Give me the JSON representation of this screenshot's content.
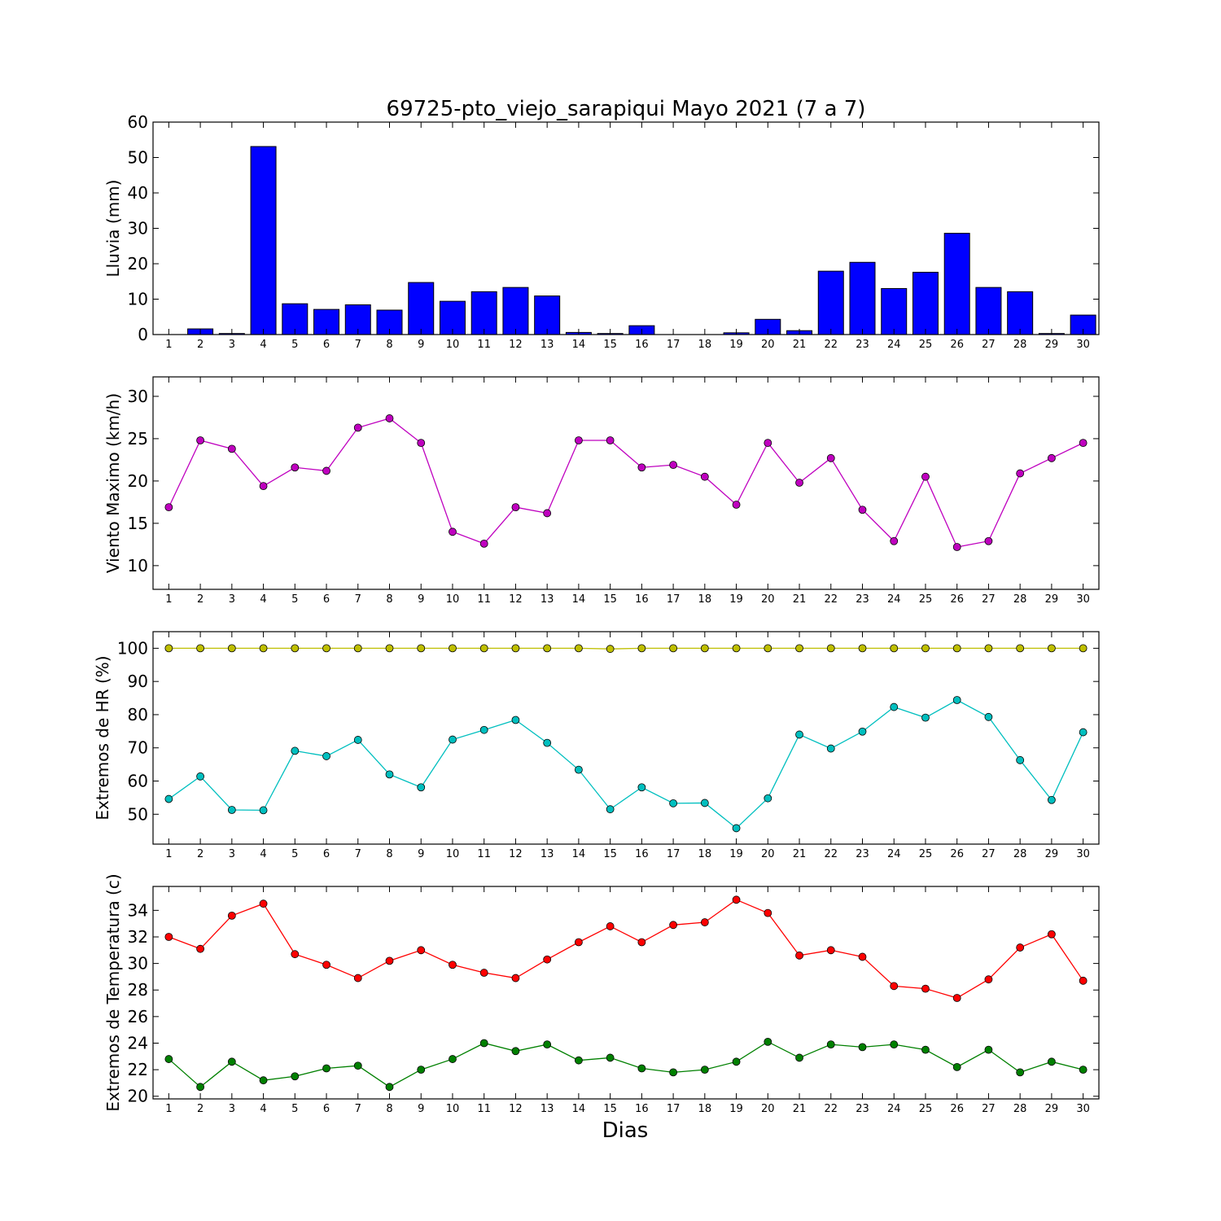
{
  "title": "69725-pto_viejo_sarapiqui Mayo 2021  (7 a 7)",
  "x_axis_label": "Dias",
  "days": [
    1,
    2,
    3,
    4,
    5,
    6,
    7,
    8,
    9,
    10,
    11,
    12,
    13,
    14,
    15,
    16,
    17,
    18,
    19,
    20,
    21,
    22,
    23,
    24,
    25,
    26,
    27,
    28,
    29,
    30
  ],
  "chart_data": [
    {
      "type": "bar",
      "ylabel": "Lluvia (mm)",
      "ylim": [
        0,
        60
      ],
      "yticks": [
        0,
        10,
        20,
        30,
        40,
        50,
        60
      ],
      "series": [
        {
          "color": "#0000ff",
          "values": [
            0,
            1.6,
            0.3,
            53.1,
            8.7,
            7.1,
            8.4,
            6.9,
            14.7,
            9.4,
            12.1,
            13.3,
            10.9,
            0.6,
            0.3,
            2.5,
            0,
            0,
            0.5,
            4.3,
            1.1,
            17.9,
            20.4,
            13.0,
            17.6,
            28.6,
            13.3,
            12.1,
            0.3,
            5.5
          ]
        }
      ]
    },
    {
      "type": "line",
      "ylabel": "Viento Maximo (km/h)",
      "ylim": [
        7.2,
        32.3
      ],
      "yticks": [
        10,
        15,
        20,
        25,
        30
      ],
      "series": [
        {
          "color": "#bf00bf",
          "values": [
            16.9,
            24.8,
            23.8,
            19.4,
            21.6,
            21.2,
            26.3,
            27.4,
            24.5,
            14.0,
            12.6,
            16.9,
            16.2,
            24.8,
            24.8,
            21.6,
            21.9,
            20.5,
            17.2,
            24.5,
            19.8,
            22.7,
            16.6,
            12.9,
            20.5,
            12.2,
            12.9,
            20.9,
            22.7,
            24.5
          ]
        }
      ]
    },
    {
      "type": "line",
      "ylabel": "Extremos de HR (%)",
      "ylim": [
        41,
        105
      ],
      "yticks": [
        50,
        60,
        70,
        80,
        90,
        100
      ],
      "series": [
        {
          "color": "#bfbf00",
          "values": [
            100,
            100,
            100,
            100,
            100,
            100,
            100,
            100,
            100,
            100,
            100,
            100,
            100,
            100,
            99.8,
            100,
            100,
            100,
            100,
            100,
            100,
            100,
            100,
            100,
            100,
            100,
            100,
            100,
            100,
            100
          ]
        },
        {
          "color": "#00bfbf",
          "values": [
            54.6,
            61.4,
            51.3,
            51.2,
            69.1,
            67.5,
            72.4,
            62.0,
            58.1,
            72.5,
            75.4,
            78.4,
            71.5,
            63.4,
            51.5,
            58.1,
            53.3,
            53.4,
            45.8,
            54.8,
            74.0,
            69.8,
            74.9,
            82.3,
            79.1,
            84.4,
            79.3,
            66.3,
            54.3,
            74.7
          ]
        }
      ]
    },
    {
      "type": "line",
      "ylabel": "Extremos de Temperatura (c)",
      "ylim": [
        19.8,
        35.8
      ],
      "yticks": [
        20,
        22,
        24,
        26,
        28,
        30,
        32,
        34
      ],
      "series": [
        {
          "color": "#ff0000",
          "values": [
            32.0,
            31.1,
            33.6,
            34.5,
            30.7,
            29.9,
            28.9,
            30.2,
            31.0,
            29.9,
            29.3,
            28.9,
            30.3,
            31.6,
            32.8,
            31.6,
            32.9,
            33.1,
            34.8,
            33.8,
            30.6,
            31.0,
            30.5,
            28.3,
            28.1,
            27.4,
            28.8,
            31.2,
            32.2,
            28.7
          ]
        },
        {
          "color": "#008000",
          "values": [
            22.8,
            20.7,
            22.6,
            21.2,
            21.5,
            22.1,
            22.3,
            20.7,
            22.0,
            22.8,
            24.0,
            23.4,
            23.9,
            22.7,
            22.9,
            22.1,
            21.8,
            22.0,
            22.6,
            24.1,
            22.9,
            23.9,
            23.7,
            23.9,
            23.5,
            22.2,
            23.5,
            21.8,
            22.6,
            22.0
          ]
        }
      ]
    }
  ]
}
